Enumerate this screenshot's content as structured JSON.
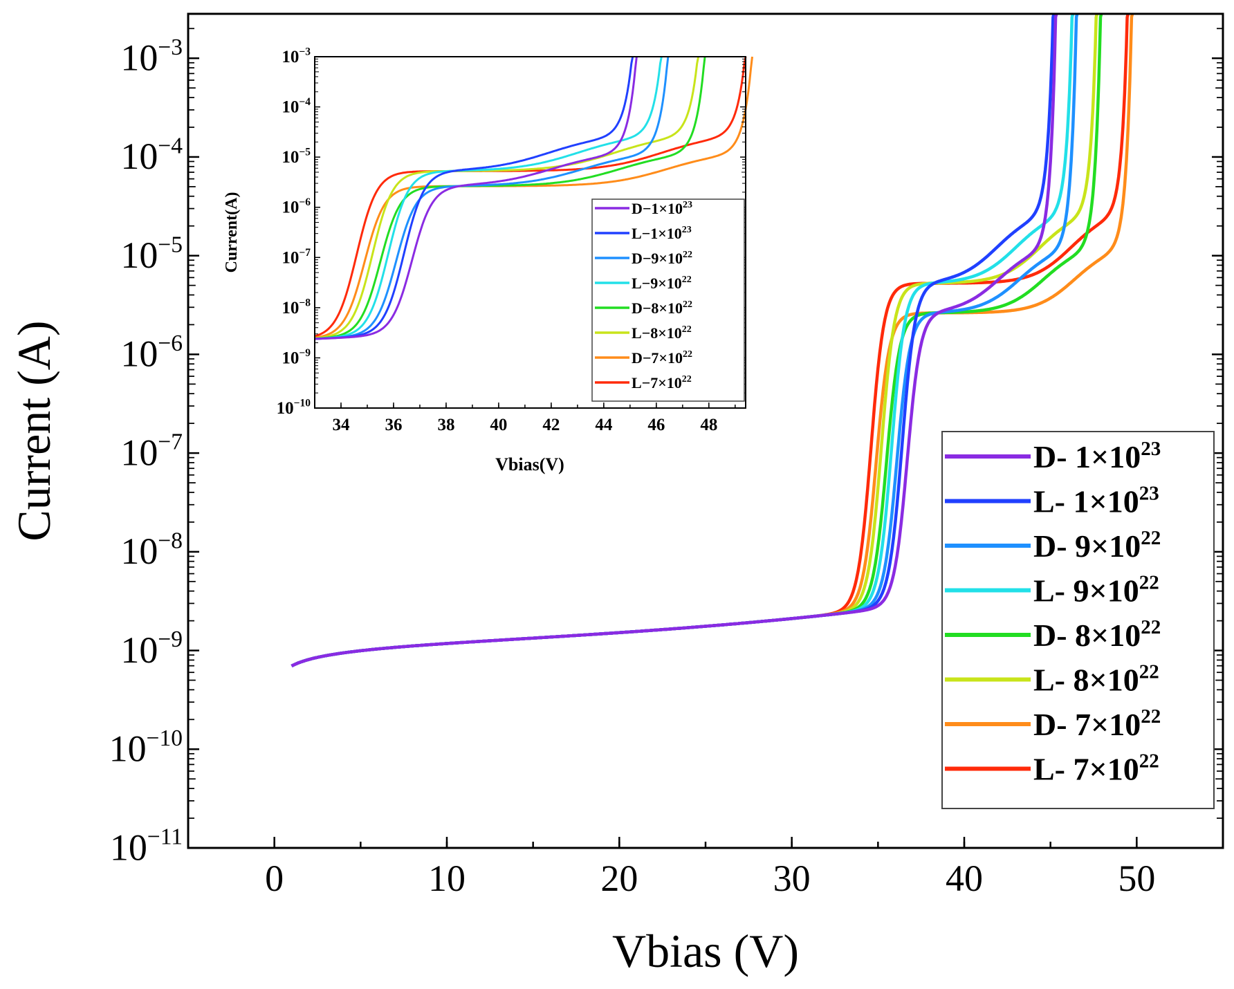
{
  "chart_data": [
    {
      "id": "main",
      "type": "line",
      "yscale": "log",
      "xlabel": "Vbias (V)",
      "ylabel": "Current (A)",
      "xlim": [
        -5,
        55
      ],
      "ylim_exp": [
        -11,
        -2.55
      ],
      "xticks": [
        0,
        10,
        20,
        30,
        40,
        50
      ],
      "yticks": [
        -11,
        -10,
        -9,
        -8,
        -7,
        -6,
        -5,
        -4,
        -3
      ],
      "legend_position": "right",
      "series": [
        {
          "name": "D- 1×10",
          "sup": "23",
          "color": "#8a2be2",
          "break_v": 35.9,
          "plateau": "low",
          "v_bd": 45.0
        },
        {
          "name": "L- 1×10",
          "sup": "23",
          "color": "#2040ff",
          "break_v": 35.6,
          "plateau": "high",
          "v_bd": 44.9
        },
        {
          "name": "D- 9×10",
          "sup": "22",
          "color": "#1e90ff",
          "break_v": 35.3,
          "plateau": "low",
          "v_bd": 46.2
        },
        {
          "name": "L- 9×10",
          "sup": "22",
          "color": "#22e0e8",
          "break_v": 35.0,
          "plateau": "high",
          "v_bd": 46.0
        },
        {
          "name": "D- 8×10",
          "sup": "22",
          "color": "#22dd22",
          "break_v": 34.7,
          "plateau": "low",
          "v_bd": 47.6
        },
        {
          "name": "L- 8×10",
          "sup": "22",
          "color": "#c8e41a",
          "break_v": 34.4,
          "plateau": "high",
          "v_bd": 47.4
        },
        {
          "name": "D- 7×10",
          "sup": "22",
          "color": "#ff8c1a",
          "break_v": 34.1,
          "plateau": "low",
          "v_bd": 49.4
        },
        {
          "name": "L- 7×10",
          "sup": "22",
          "color": "#ff2a0a",
          "break_v": 33.8,
          "plateau": "high",
          "v_bd": 49.2
        }
      ]
    },
    {
      "id": "inset",
      "type": "line",
      "yscale": "log",
      "xlabel": "Vbias(V)",
      "ylabel": "Current(A)",
      "xlim": [
        33,
        49.4
      ],
      "ylim_exp": [
        -10,
        -3
      ],
      "xticks": [
        34,
        36,
        38,
        40,
        42,
        44,
        46,
        48
      ],
      "yticks": [
        -10,
        -9,
        -8,
        -7,
        -6,
        -5,
        -4,
        -3
      ],
      "legend_position": "lower-right",
      "legend": [
        "D−1×10",
        "L−1×10",
        "D−9×10",
        "L−9×10",
        "D−8×10",
        "L−8×10",
        "D−7×10",
        "L−7×10"
      ],
      "legend_sup": [
        "23",
        "23",
        "22",
        "22",
        "22",
        "22",
        "22",
        "22"
      ]
    }
  ]
}
